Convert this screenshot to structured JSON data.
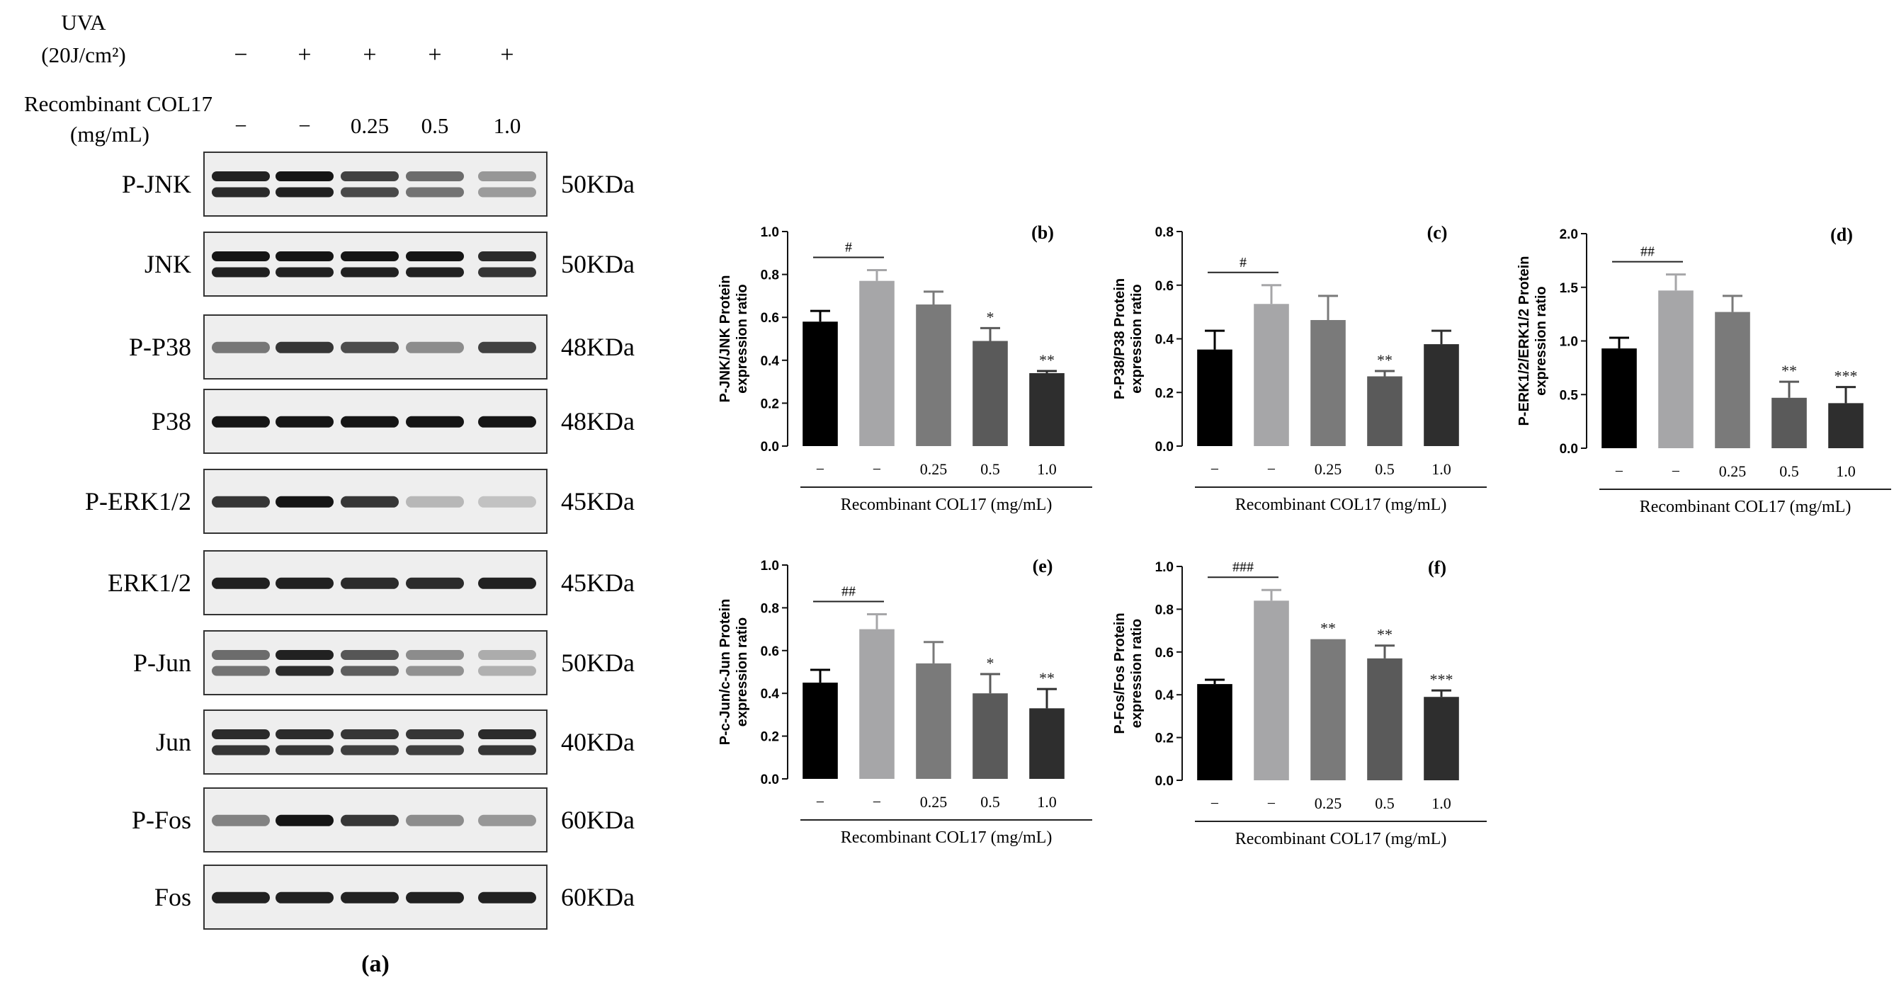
{
  "western_blot": {
    "uva_label_line1": "UVA",
    "uva_label_line2": "(20J/cm²)",
    "uva_treatment": [
      "−",
      "+",
      "+",
      "+",
      "+"
    ],
    "col17_label_line1": "Recombinant COL17",
    "col17_label_line2": "(mg/mL)",
    "col17_treatment": [
      "−",
      "−",
      "0.25",
      "0.5",
      "1.0"
    ],
    "panel_label": "(a)",
    "blots": [
      {
        "protein": "P-JNK",
        "size": "50KDa",
        "bands": 2,
        "intensity": [
          0.95,
          1.0,
          0.8,
          0.6,
          0.4
        ]
      },
      {
        "protein": "JNK",
        "size": "50KDa",
        "bands": 2,
        "intensity": [
          1.0,
          1.0,
          1.0,
          1.0,
          0.9
        ]
      },
      {
        "protein": "P-P38",
        "size": "48KDa",
        "bands": 1,
        "intensity": [
          0.55,
          0.85,
          0.75,
          0.45,
          0.8
        ]
      },
      {
        "protein": "P38",
        "size": "48KDa",
        "bands": 1,
        "intensity": [
          1.0,
          1.0,
          1.0,
          1.0,
          1.0
        ]
      },
      {
        "protein": "P-ERK1/2",
        "size": "45KDa",
        "bands": 1,
        "intensity": [
          0.85,
          1.0,
          0.85,
          0.25,
          0.2
        ]
      },
      {
        "protein": "ERK1/2",
        "size": "45KDa",
        "bands": 1,
        "intensity": [
          0.95,
          0.95,
          0.9,
          0.9,
          0.95
        ]
      },
      {
        "protein": "P-Jun",
        "size": "50KDa",
        "bands": 2,
        "intensity": [
          0.6,
          0.95,
          0.7,
          0.45,
          0.3
        ]
      },
      {
        "protein": "Jun",
        "size": "40KDa",
        "bands": 2,
        "intensity": [
          0.9,
          0.9,
          0.85,
          0.85,
          0.9
        ]
      },
      {
        "protein": "P-Fos",
        "size": "60KDa",
        "bands": 1,
        "intensity": [
          0.5,
          1.0,
          0.85,
          0.45,
          0.4
        ]
      },
      {
        "protein": "Fos",
        "size": "60KDa",
        "bands": 1,
        "intensity": [
          0.95,
          0.95,
          0.95,
          0.95,
          0.95
        ]
      }
    ]
  },
  "chart_data": [
    {
      "type": "bar",
      "panel": "(b)",
      "ylabel": "P-JNK/JNK Protein expression ratio",
      "xlabel": "Recombinant COL17 (mg/mL)",
      "categories": [
        "−",
        "−",
        "0.25",
        "0.5",
        "1.0"
      ],
      "values": [
        0.58,
        0.77,
        0.66,
        0.49,
        0.34
      ],
      "errors": [
        0.05,
        0.05,
        0.06,
        0.06,
        0.01
      ],
      "ylim": [
        0,
        1.0
      ],
      "yticks": [
        "0.0",
        "0.2",
        "0.4",
        "0.6",
        "0.8",
        "1.0"
      ],
      "significance": [
        "",
        "",
        "",
        "*",
        "**"
      ],
      "comparison_label": "#"
    },
    {
      "type": "bar",
      "panel": "(c)",
      "ylabel": "P-P38/P38 Protein expression ratio",
      "xlabel": "Recombinant COL17 (mg/mL)",
      "categories": [
        "−",
        "−",
        "0.25",
        "0.5",
        "1.0"
      ],
      "values": [
        0.36,
        0.53,
        0.47,
        0.26,
        0.38
      ],
      "errors": [
        0.07,
        0.07,
        0.09,
        0.02,
        0.05
      ],
      "ylim": [
        0,
        0.8
      ],
      "yticks": [
        "0.0",
        "0.2",
        "0.4",
        "0.6",
        "0.8"
      ],
      "significance": [
        "",
        "",
        "",
        "**",
        ""
      ],
      "comparison_label": "#"
    },
    {
      "type": "bar",
      "panel": "(d)",
      "ylabel": "P-ERK1/2/ERK1/2 Protein expression ratio",
      "xlabel": "Recombinant COL17 (mg/mL)",
      "categories": [
        "−",
        "−",
        "0.25",
        "0.5",
        "1.0"
      ],
      "values": [
        0.93,
        1.47,
        1.27,
        0.47,
        0.42
      ],
      "errors": [
        0.1,
        0.15,
        0.15,
        0.15,
        0.15
      ],
      "ylim": [
        0,
        2.0
      ],
      "yticks": [
        "0.0",
        "0.5",
        "1.0",
        "1.5",
        "2.0"
      ],
      "significance": [
        "",
        "",
        "",
        "**",
        "***"
      ],
      "comparison_label": "##"
    },
    {
      "type": "bar",
      "panel": "(e)",
      "ylabel": "P-c-Jun/c-Jun Protein expression ratio",
      "xlabel": "Recombinant COL17 (mg/mL)",
      "categories": [
        "−",
        "−",
        "0.25",
        "0.5",
        "1.0"
      ],
      "values": [
        0.45,
        0.7,
        0.54,
        0.4,
        0.33
      ],
      "errors": [
        0.06,
        0.07,
        0.1,
        0.09,
        0.09
      ],
      "ylim": [
        0,
        1.0
      ],
      "yticks": [
        "0.0",
        "0.2",
        "0.4",
        "0.6",
        "0.8",
        "1.0"
      ],
      "significance": [
        "",
        "",
        "",
        "*",
        "**"
      ],
      "comparison_label": "##"
    },
    {
      "type": "bar",
      "panel": "(f)",
      "ylabel": "P-Fos/Fos Protein expression ratio",
      "xlabel": "Recombinant COL17 (mg/mL)",
      "categories": [
        "−",
        "−",
        "0.25",
        "0.5",
        "1.0"
      ],
      "values": [
        0.45,
        0.84,
        0.66,
        0.57,
        0.39
      ],
      "errors": [
        0.02,
        0.05,
        0.0,
        0.06,
        0.03
      ],
      "ylim": [
        0,
        1.0
      ],
      "yticks": [
        "0.0",
        "0.2",
        "0.4",
        "0.6",
        "0.8",
        "1.0"
      ],
      "significance": [
        "",
        "",
        "**",
        "**",
        "***"
      ],
      "comparison_label": "###"
    }
  ],
  "colors": {
    "bars": [
      "#000000",
      "#a6a6a8",
      "#7a7a7a",
      "#5a5a5a",
      "#2e2e2e"
    ],
    "axis": "#111111",
    "blot_background": "#eeeeee",
    "blot_band": "#151515"
  }
}
